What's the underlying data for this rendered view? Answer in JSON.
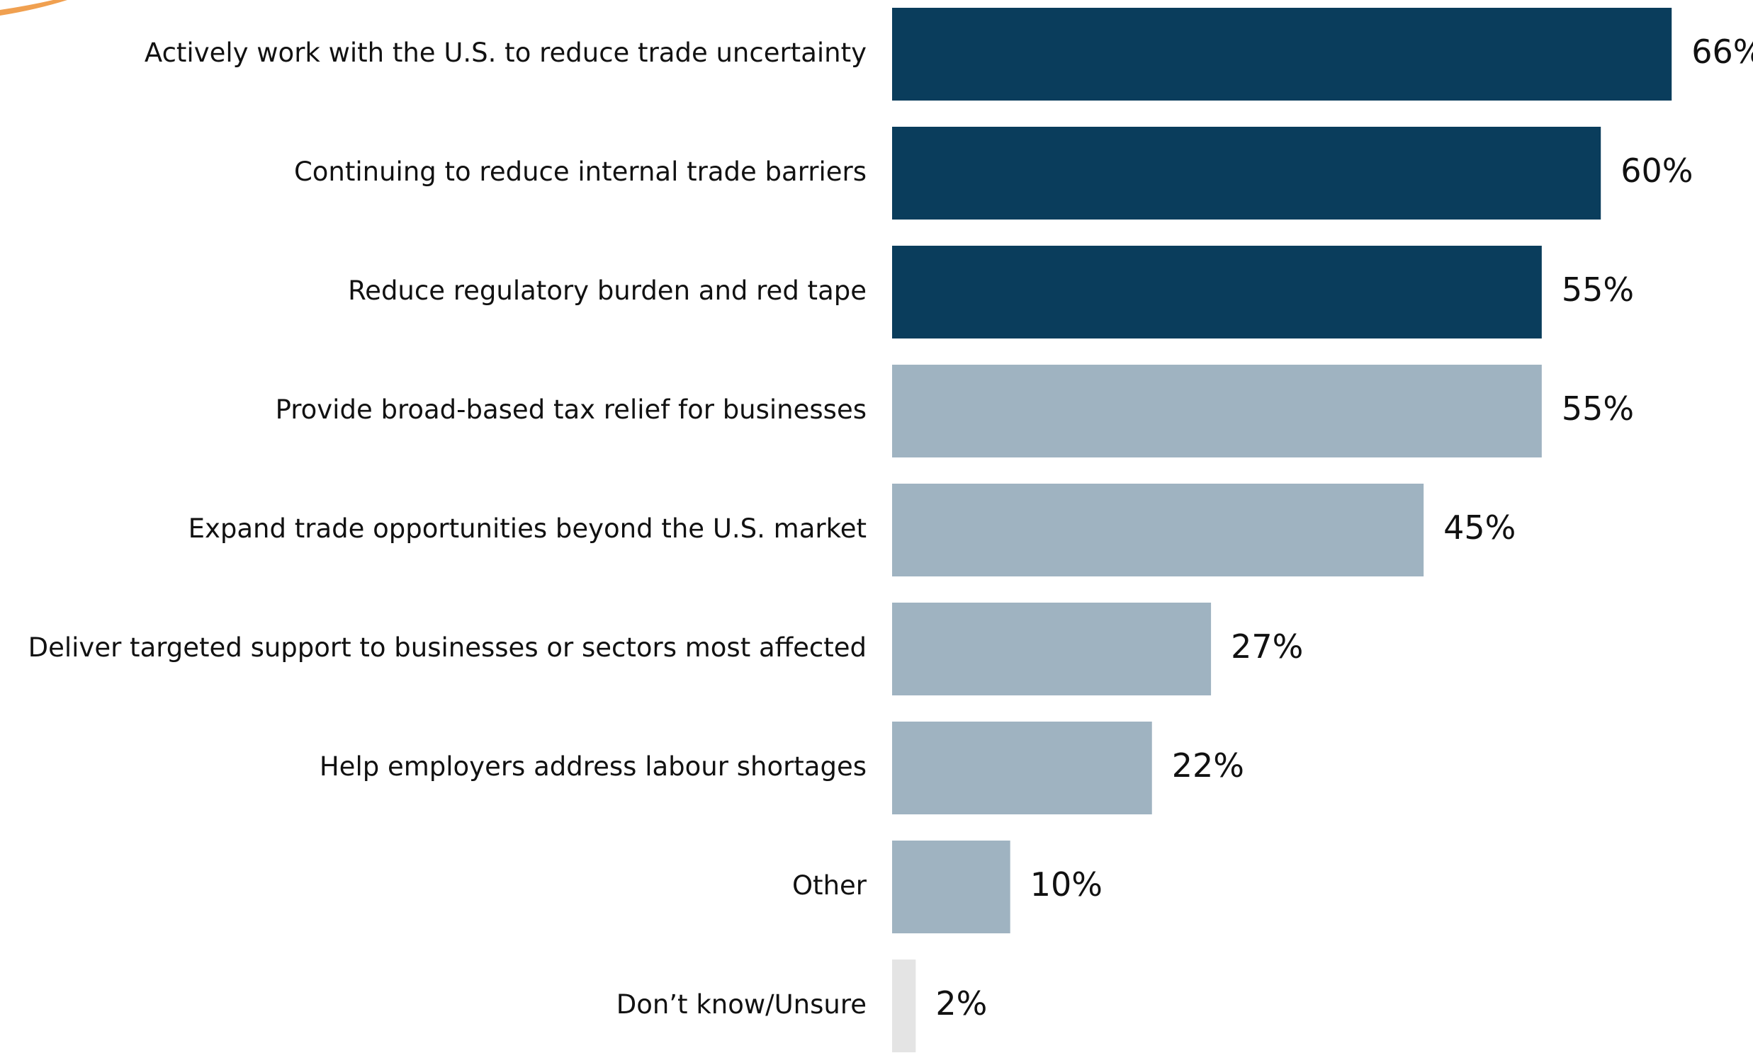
{
  "chart_data": {
    "type": "hbar",
    "categories": [
      "Actively work with the U.S. to reduce trade uncertainty",
      "Continuing to reduce internal trade barriers",
      "Reduce regulatory burden and red tape",
      "Provide broad-based tax relief for businesses",
      "Expand trade opportunities beyond the U.S. market",
      "Deliver targeted support to businesses or sectors most affected",
      "Help employers address labour shortages",
      "Other",
      "Don’t know/Unsure"
    ],
    "values": [
      66,
      60,
      55,
      55,
      45,
      27,
      22,
      10,
      2
    ],
    "value_labels": [
      "66%",
      "60%",
      "55%",
      "55%",
      "45%",
      "27%",
      "22%",
      "10%",
      "2%"
    ],
    "colors": [
      "#0a3d5c",
      "#0a3d5c",
      "#0a3d5c",
      "#9fb3c1",
      "#9fb3c1",
      "#9fb3c1",
      "#9fb3c1",
      "#9fb3c1",
      "#e4e4e4"
    ]
  }
}
